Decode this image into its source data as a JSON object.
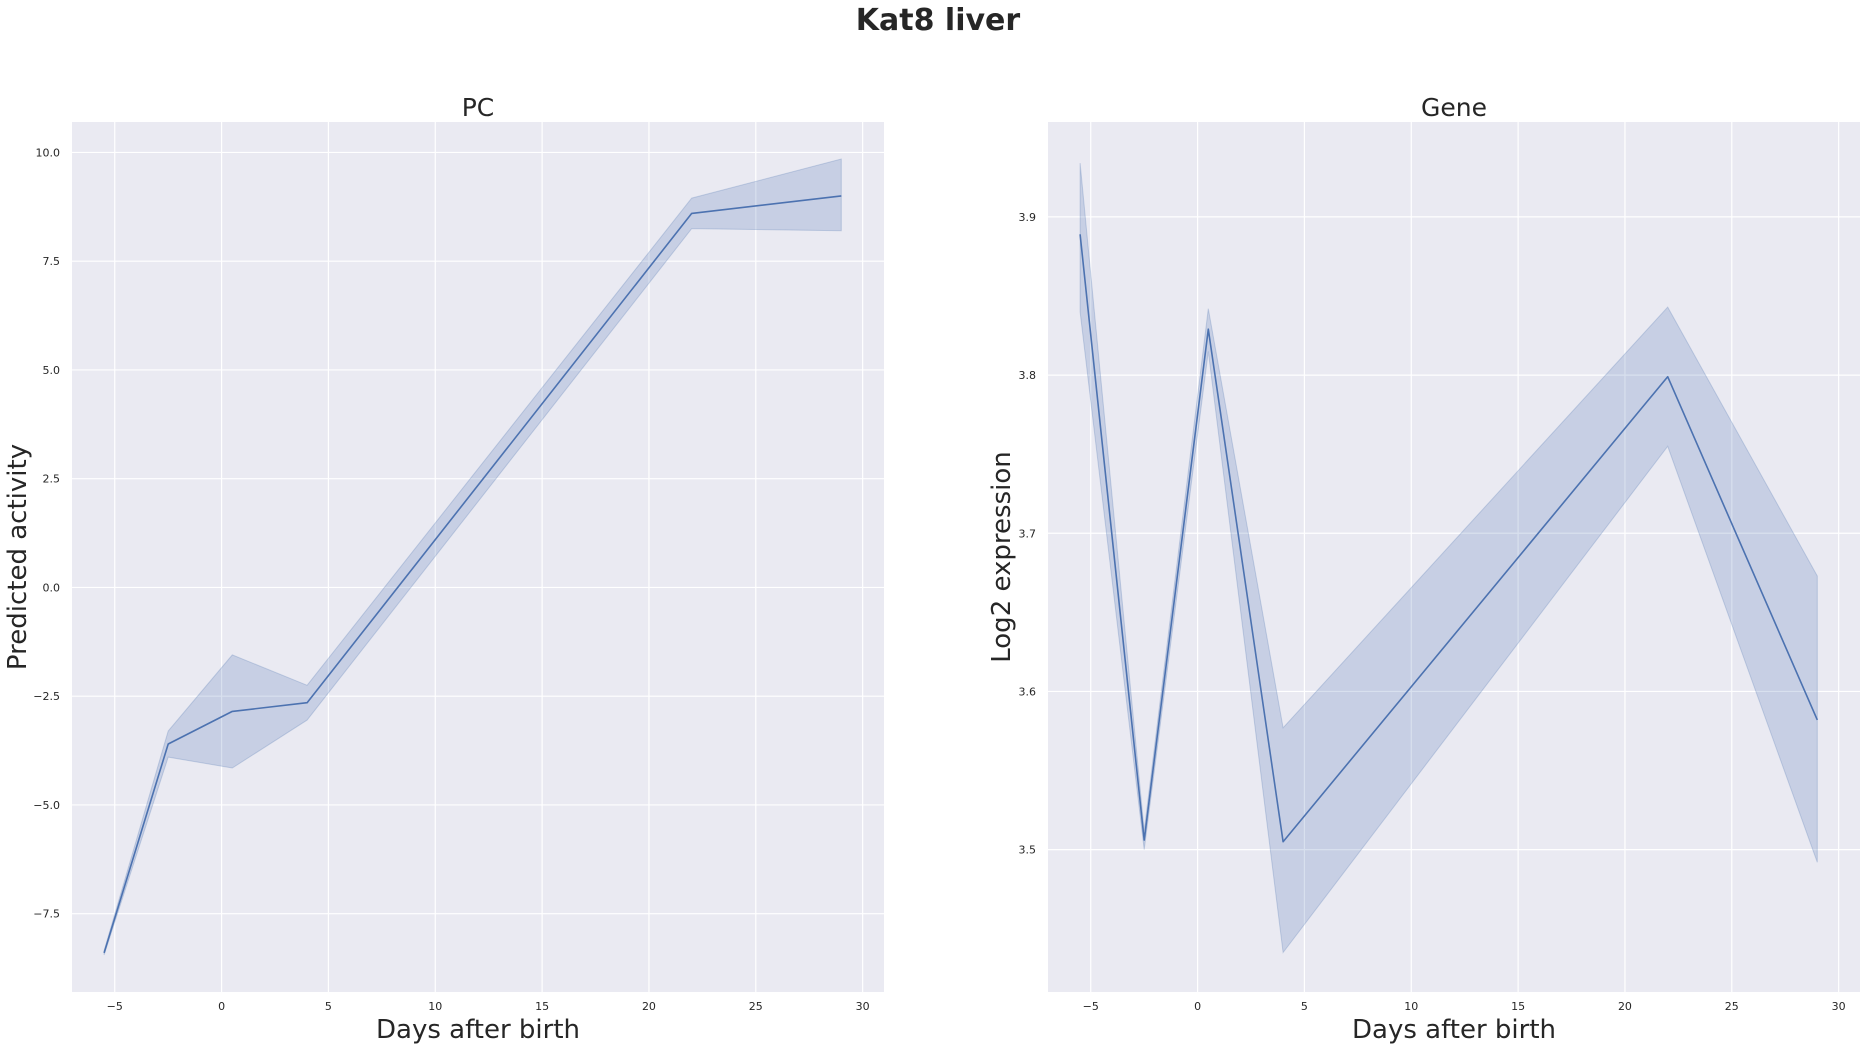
{
  "figure_title": "Kat8 liver",
  "chart_data": [
    {
      "type": "line",
      "title": "PC",
      "xlabel": "Days after birth",
      "ylabel": "Predicted activity",
      "xlim": [
        -7,
        31
      ],
      "ylim": [
        -9.3,
        10.7
      ],
      "xticks": [
        -5,
        0,
        5,
        10,
        15,
        20,
        25,
        30
      ],
      "xtick_labels": [
        "−5",
        "0",
        "5",
        "10",
        "15",
        "20",
        "25",
        "30"
      ],
      "yticks": [
        -7.5,
        -5.0,
        -2.5,
        0.0,
        2.5,
        5.0,
        7.5,
        10.0
      ],
      "ytick_labels": [
        "−7.5",
        "−5.0",
        "−2.5",
        "0.0",
        "2.5",
        "5.0",
        "7.5",
        "10.0"
      ],
      "grid": true,
      "color": "#4c72b0",
      "x": [
        -5.5,
        -2.5,
        0.5,
        4,
        22,
        29
      ],
      "y": [
        -8.4,
        -3.6,
        -2.85,
        -2.65,
        8.6,
        9.0
      ],
      "ci_low": [
        -8.45,
        -3.9,
        -4.15,
        -3.05,
        8.25,
        8.2
      ],
      "ci_high": [
        -8.35,
        -3.3,
        -1.55,
        -2.25,
        8.95,
        9.85
      ]
    },
    {
      "type": "line",
      "title": "Gene",
      "xlabel": "Days after birth",
      "ylabel": "Log2 expression",
      "xlim": [
        -7,
        31
      ],
      "ylim": [
        3.41,
        3.96
      ],
      "xticks": [
        -5,
        0,
        5,
        10,
        15,
        20,
        25,
        30
      ],
      "xtick_labels": [
        "−5",
        "0",
        "5",
        "10",
        "15",
        "20",
        "25",
        "30"
      ],
      "yticks": [
        3.5,
        3.6,
        3.7,
        3.8,
        3.9
      ],
      "ytick_labels": [
        "3.5",
        "3.6",
        "3.7",
        "3.8",
        "3.9"
      ],
      "grid": true,
      "color": "#4c72b0",
      "x": [
        -5.5,
        -2.5,
        0.5,
        4,
        22,
        29
      ],
      "y": [
        3.889,
        3.506,
        3.829,
        3.505,
        3.799,
        3.582
      ],
      "ci_low": [
        3.84,
        3.5,
        3.815,
        3.435,
        3.755,
        3.492
      ],
      "ci_high": [
        3.934,
        3.512,
        3.842,
        3.577,
        3.843,
        3.673
      ]
    }
  ]
}
